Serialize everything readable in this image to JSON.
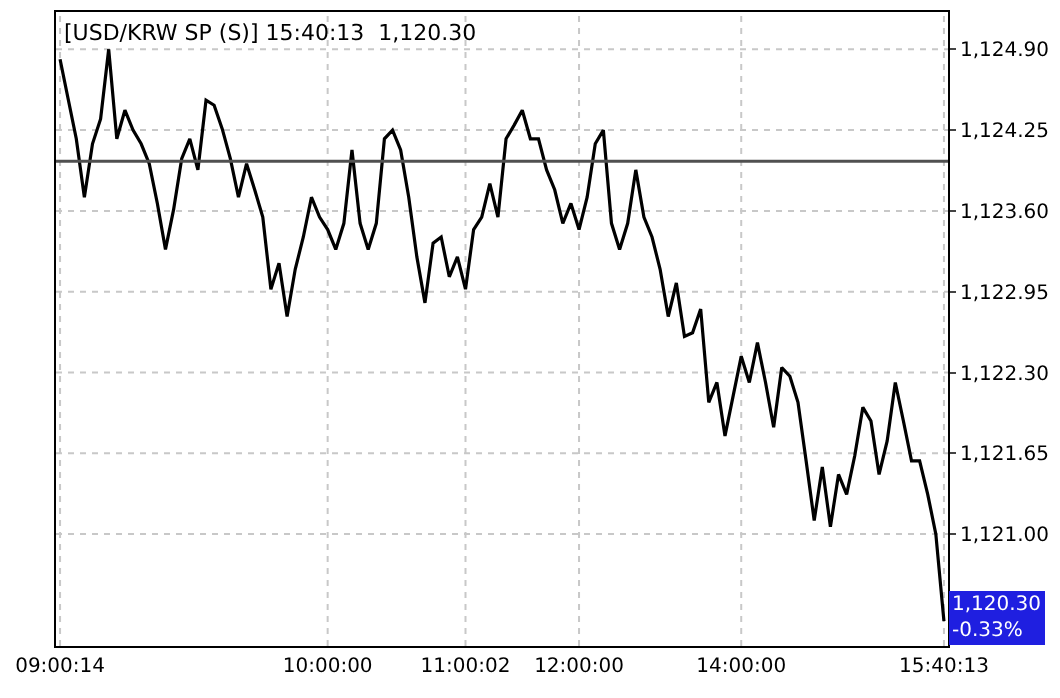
{
  "chart_data": {
    "type": "line",
    "title": "[USD/KRW SP (S)] 15:40:13  1,120.30",
    "categories": [
      "09:00:14",
      null,
      null,
      null,
      null,
      null,
      null,
      null,
      null,
      null,
      null,
      null,
      null,
      null,
      null,
      null,
      null,
      null,
      null,
      null,
      null,
      null,
      null,
      null,
      null,
      null,
      null,
      null,
      null,
      null,
      null,
      null,
      null,
      "10:00:00",
      null,
      null,
      null,
      null,
      null,
      null,
      null,
      null,
      null,
      null,
      null,
      null,
      null,
      null,
      null,
      null,
      "11:00:02",
      null,
      null,
      null,
      null,
      null,
      null,
      null,
      null,
      null,
      null,
      null,
      null,
      null,
      "12:00:00",
      null,
      null,
      null,
      null,
      null,
      null,
      null,
      null,
      null,
      null,
      null,
      null,
      null,
      null,
      null,
      null,
      null,
      null,
      null,
      "14:00:00",
      null,
      null,
      null,
      null,
      null,
      null,
      null,
      null,
      null,
      null,
      null,
      null,
      null,
      null,
      null,
      null,
      null,
      null,
      null,
      null,
      null,
      null,
      null,
      null,
      "15:40:13"
    ],
    "series": [
      {
        "color": "#000000",
        "values": [
          1124.82,
          1124.5,
          1124.18,
          1123.71,
          1124.14,
          1124.34,
          1124.9,
          1124.18,
          1124.41,
          1124.25,
          1124.14,
          1123.98,
          1123.66,
          1123.29,
          1123.61,
          1124.02,
          1124.18,
          1123.93,
          1124.49,
          1124.45,
          1124.26,
          1124.02,
          1123.71,
          1123.98,
          1123.77,
          1123.55,
          1122.97,
          1123.18,
          1122.75,
          1123.13,
          1123.39,
          1123.71,
          1123.55,
          1123.45,
          1123.29,
          1123.5,
          1124.09,
          1123.5,
          1123.29,
          1123.5,
          1124.18,
          1124.25,
          1124.09,
          1123.71,
          1123.23,
          1122.86,
          1123.34,
          1123.39,
          1123.07,
          1123.23,
          1122.97,
          1123.45,
          1123.55,
          1123.82,
          1123.55,
          1124.18,
          1124.29,
          1124.41,
          1124.18,
          1124.18,
          1123.93,
          1123.77,
          1123.5,
          1123.66,
          1123.45,
          1123.71,
          1124.14,
          1124.25,
          1123.5,
          1123.29,
          1123.5,
          1123.93,
          1123.55,
          1123.39,
          1123.13,
          1122.75,
          1123.02,
          1122.59,
          1122.62,
          1122.81,
          1122.06,
          1122.22,
          1121.79,
          1122.11,
          1122.43,
          1122.22,
          1122.54,
          1122.22,
          1121.86,
          1122.34,
          1122.27,
          1122.06,
          1121.59,
          1121.11,
          1121.54,
          1121.06,
          1121.48,
          1121.32,
          1121.63,
          1122.02,
          1121.91,
          1121.48,
          1121.75,
          1122.22,
          1121.91,
          1121.59,
          1121.59,
          1121.32,
          1121.0,
          1120.3
        ]
      }
    ],
    "ylim": [
      1120.1,
      1125.2
    ],
    "yticks": [
      {
        "value": 1124.9,
        "label": "1,124.90"
      },
      {
        "value": 1124.25,
        "label": "1,124.25"
      },
      {
        "value": 1123.6,
        "label": "1,123.60"
      },
      {
        "value": 1122.95,
        "label": "1,122.95"
      },
      {
        "value": 1122.3,
        "label": "1,122.30"
      },
      {
        "value": 1121.65,
        "label": "1,121.65"
      },
      {
        "value": 1121.0,
        "label": "1,121.00"
      }
    ],
    "ref_lines": [
      {
        "axis": "y",
        "value": 1124.0,
        "color": "#505050"
      }
    ],
    "annotations": [
      "1,120.30\n-0.33%"
    ],
    "grid": true
  }
}
